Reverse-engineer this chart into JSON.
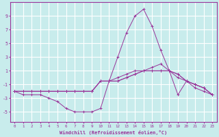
{
  "xlabel": "Windchill (Refroidissement éolien,°C)",
  "background_color": "#c8ecec",
  "grid_color": "#ffffff",
  "line_color": "#993399",
  "marker": "+",
  "xlim": [
    -0.5,
    23.5
  ],
  "ylim": [
    -6.5,
    11
  ],
  "yticks": [
    -5,
    -3,
    -1,
    1,
    3,
    5,
    7,
    9
  ],
  "xticks": [
    0,
    1,
    2,
    3,
    4,
    5,
    6,
    7,
    8,
    9,
    10,
    11,
    12,
    13,
    14,
    15,
    16,
    17,
    18,
    19,
    20,
    21,
    22,
    23
  ],
  "series": [
    {
      "x": [
        0,
        1,
        2,
        3,
        4,
        5,
        6,
        7,
        8,
        9,
        10,
        11,
        12,
        13,
        14,
        15,
        16,
        17,
        18,
        19,
        20,
        21,
        22,
        23
      ],
      "y": [
        -2,
        -2.5,
        -2.5,
        -2.5,
        -3,
        -3.5,
        -4.5,
        -5,
        -5,
        -5,
        -4.5,
        -0.5,
        3,
        6.5,
        9,
        10,
        7.5,
        4,
        1,
        -2.5,
        -0.5,
        -1.5,
        -2,
        -2.5
      ]
    },
    {
      "x": [
        0,
        1,
        2,
        3,
        4,
        5,
        6,
        7,
        8,
        9,
        10,
        11,
        12,
        13,
        14,
        15,
        16,
        17,
        18,
        19,
        20,
        21,
        22,
        23
      ],
      "y": [
        -2,
        -2,
        -2,
        -2,
        -2,
        -2,
        -2,
        -2,
        -2,
        -2,
        -0.5,
        -0.5,
        0,
        0.5,
        1,
        1,
        1,
        1,
        1,
        0.5,
        -0.5,
        -1,
        -1.5,
        -2.5
      ]
    },
    {
      "x": [
        0,
        1,
        2,
        3,
        4,
        5,
        6,
        7,
        8,
        9,
        10,
        11,
        12,
        13,
        14,
        15,
        16,
        17,
        18,
        19,
        20,
        21,
        22,
        23
      ],
      "y": [
        -2,
        -2,
        -2,
        -2,
        -2,
        -2,
        -2,
        -2,
        -2,
        -2,
        -0.5,
        -0.5,
        -0.5,
        0,
        0.5,
        1,
        1.5,
        2,
        1,
        0.5,
        -0.5,
        -1,
        -1.5,
        -2.5
      ]
    },
    {
      "x": [
        0,
        1,
        2,
        3,
        4,
        5,
        6,
        7,
        8,
        9,
        10,
        11,
        12,
        13,
        14,
        15,
        16,
        17,
        18,
        19,
        20,
        21,
        22,
        23
      ],
      "y": [
        -2,
        -2,
        -2,
        -2,
        -2,
        -2,
        -2,
        -2,
        -2,
        -2,
        -0.5,
        -0.5,
        -0.5,
        0,
        0.5,
        1,
        1,
        1,
        1,
        0,
        -0.5,
        -1,
        -1.5,
        -2.5
      ]
    }
  ]
}
